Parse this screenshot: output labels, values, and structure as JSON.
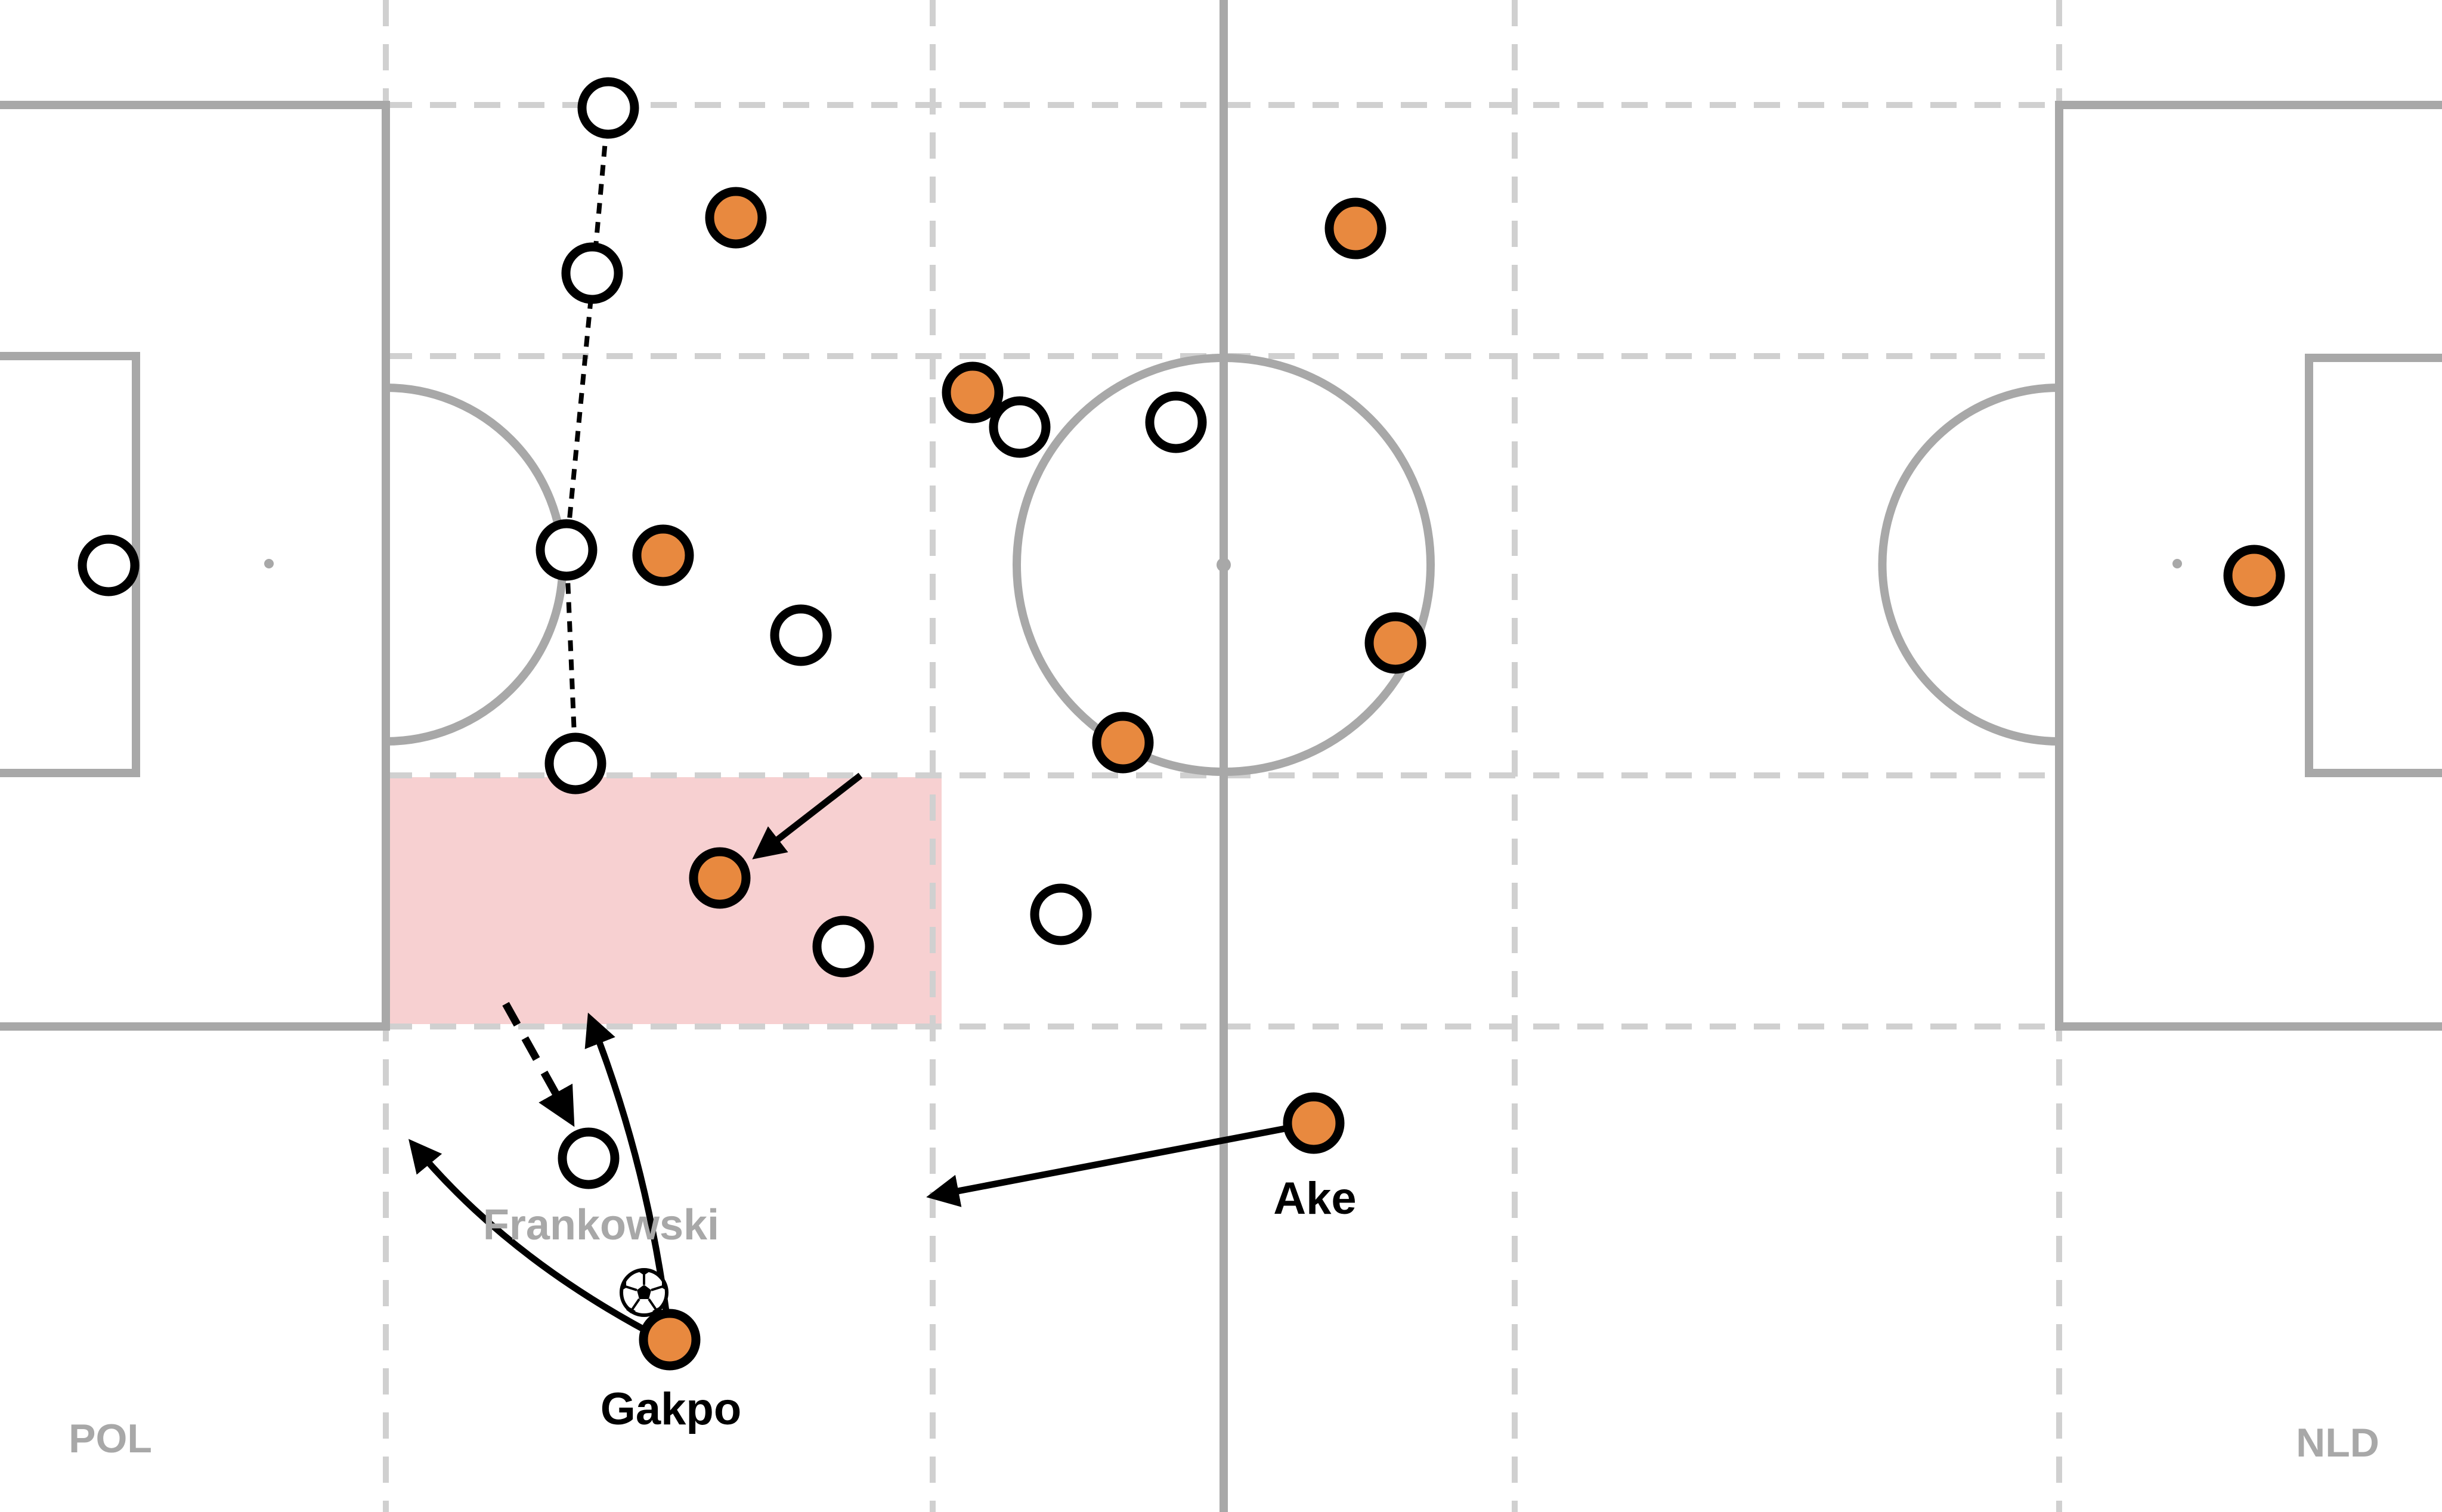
{
  "teams": {
    "left": "POL",
    "right": "NLD"
  },
  "colors": {
    "pitch_line": "#a8a8a8",
    "zone_line": "#d0d0d0",
    "highlight_zone": "#f7d0d1",
    "team_nld": "#e8893f",
    "team_pol": "#ffffff",
    "player_outline": "#000000",
    "arrow": "#000000"
  },
  "player_labels": {
    "gakpo": "Gakpo",
    "ake": "Ake",
    "frankowski": "Frankowski"
  },
  "icons": {
    "ball": "soccer-ball-icon"
  }
}
